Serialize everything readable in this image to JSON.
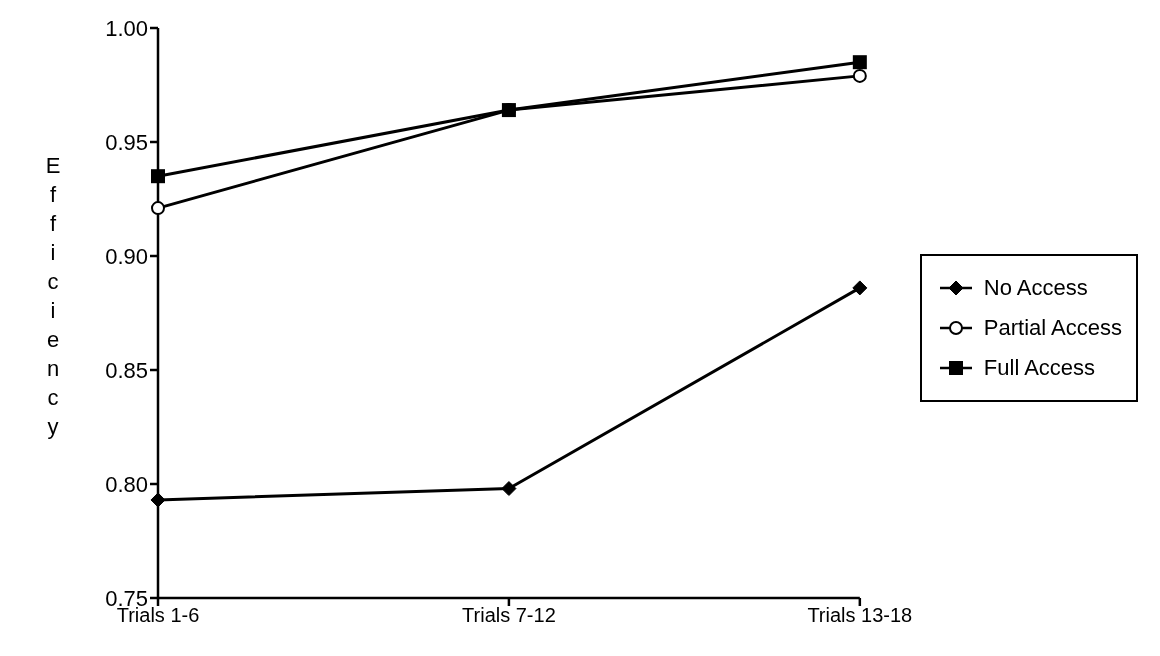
{
  "chart_data": {
    "type": "line",
    "ylabel": "Efficiency",
    "categories": [
      "Trials 1-6",
      "Trials 7-12",
      "Trials 13-18"
    ],
    "series": [
      {
        "name": "No Access",
        "color": "#000000",
        "marker": "diamond",
        "values": [
          0.793,
          0.798,
          0.886
        ]
      },
      {
        "name": "Partial Access",
        "color": "#000000",
        "marker": "circle",
        "values": [
          0.921,
          0.964,
          0.979
        ]
      },
      {
        "name": "Full Access",
        "color": "#000000",
        "marker": "square",
        "values": [
          0.935,
          0.964,
          0.985
        ]
      }
    ],
    "ylim": [
      0.75,
      1.0
    ],
    "yticks": [
      {
        "value": 0.75,
        "label": "0.75"
      },
      {
        "value": 0.8,
        "label": "0.80"
      },
      {
        "value": 0.85,
        "label": "0.85"
      },
      {
        "value": 0.9,
        "label": "0.90"
      },
      {
        "value": 0.95,
        "label": "0.95"
      },
      {
        "value": 1.0,
        "label": "1.00"
      }
    ],
    "grid": false,
    "legend": "right",
    "line_style": "solid"
  }
}
